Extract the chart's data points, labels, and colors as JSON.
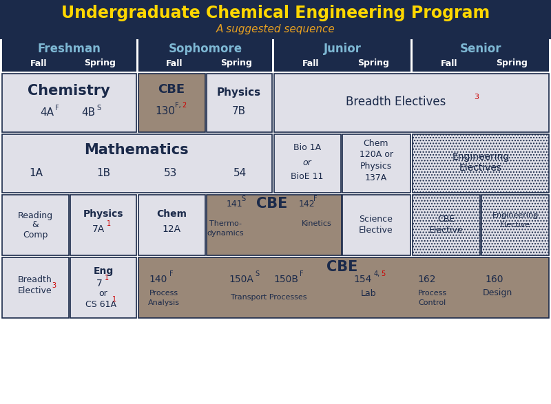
{
  "title": "Undergraduate Chemical Engineering Program",
  "subtitle": "A suggested sequence",
  "title_color": "#FFD700",
  "subtitle_color": "#E8A020",
  "header_bg": "#1B2A4A",
  "header_text_color": "#7EB8D4",
  "header_white": "#FFFFFF",
  "cell_bg_light": "#E0E0E8",
  "cell_bg_gray": "#9A8878",
  "cell_border": "#1B2A4A",
  "cell_text_dark": "#1B2A4A",
  "cell_text_red": "#CC0000",
  "year_headers": [
    "Freshman",
    "Sophomore",
    "Junior",
    "Senior"
  ]
}
